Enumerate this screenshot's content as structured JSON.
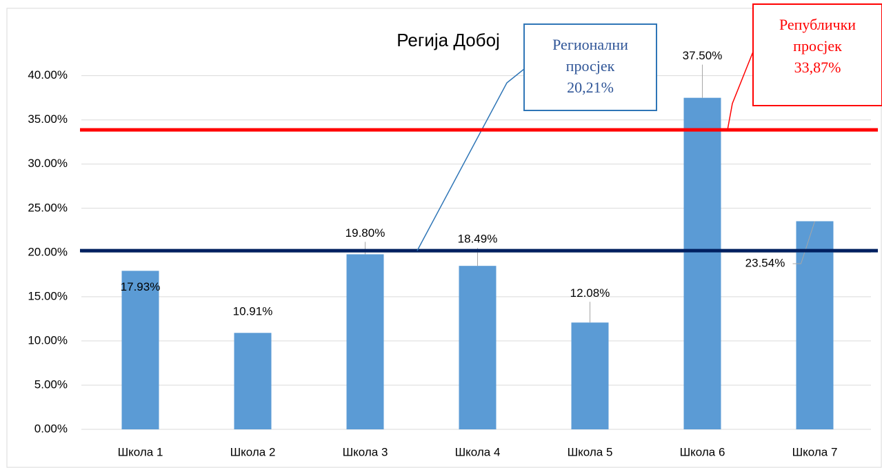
{
  "chart_data": {
    "type": "bar",
    "title": "Регија Добој",
    "categories": [
      "Школа 1",
      "Школа 2",
      "Школа 3",
      "Школа 4",
      "Школа 5",
      "Школа 6",
      "Школа 7"
    ],
    "values": [
      17.93,
      10.91,
      19.8,
      18.49,
      12.08,
      37.5,
      23.54
    ],
    "value_labels": [
      "17.93%",
      "10.91%",
      "19.80%",
      "18.49%",
      "12.08%",
      "37.50%",
      "23.54%"
    ],
    "color": "#5b9bd5",
    "ylim": [
      0,
      47
    ],
    "yticks": [
      {
        "value": 0,
        "label": "0.00%"
      },
      {
        "value": 5,
        "label": "5.00%"
      },
      {
        "value": 10,
        "label": "10.00%"
      },
      {
        "value": 15,
        "label": "15.00%"
      },
      {
        "value": 20,
        "label": "20.00%"
      },
      {
        "value": 25,
        "label": "25.00%"
      },
      {
        "value": 30,
        "label": "30.00%"
      },
      {
        "value": 35,
        "label": "35.00%"
      },
      {
        "value": 40,
        "label": "40.00%"
      }
    ],
    "grid": true,
    "reference_lines": [
      {
        "label": [
          "Регионални",
          "просјек",
          "20,21%"
        ],
        "value": 20.21,
        "color": "#002060"
      },
      {
        "label": [
          "Републички",
          "просјек",
          "33,87%"
        ],
        "value": 33.87,
        "color": "#ff0000"
      }
    ]
  }
}
